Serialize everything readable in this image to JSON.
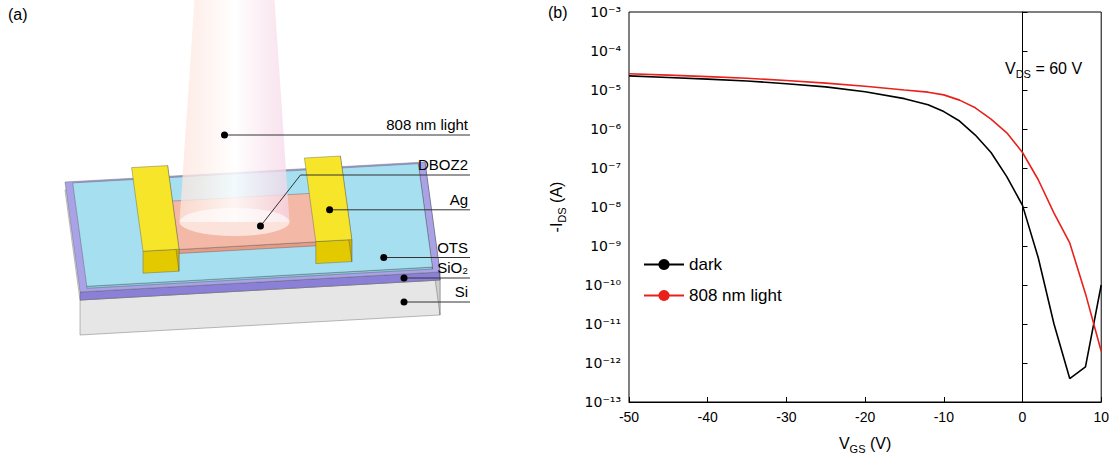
{
  "diagram": {
    "panel": "(a)",
    "labels": [
      "808 nm light",
      "DBOZ2",
      "Ag",
      "OTS",
      "SiO₂",
      "Si"
    ]
  },
  "chart_data": {
    "panel": "(b)",
    "type": "line",
    "xlabel": [
      "V",
      {
        "sub": "GS"
      },
      " (V)"
    ],
    "ylabel": [
      "-I",
      {
        "sub": "DS"
      },
      " (A)"
    ],
    "annotations": [
      [
        "V",
        {
          "sub": "DS"
        },
        " = 60 V"
      ]
    ],
    "x": [
      -50,
      -45,
      -40,
      -35,
      -30,
      -25,
      -20,
      -15,
      -12,
      -10,
      -8,
      -6,
      -4,
      -2,
      0,
      2,
      4,
      6,
      8,
      10
    ],
    "series": [
      {
        "name": "dark",
        "color": "#000000",
        "values": [
          2.3e-05,
          2.1e-05,
          1.9e-05,
          1.7e-05,
          1.45e-05,
          1.2e-05,
          9e-06,
          6e-06,
          4.2e-06,
          2.8e-06,
          1.6e-06,
          7e-07,
          2.5e-07,
          6e-08,
          1.1e-08,
          5e-10,
          1e-11,
          4e-13,
          8e-13,
          1e-10
        ]
      },
      {
        "name": "808 nm light",
        "color": "#e8211b",
        "values": [
          2.6e-05,
          2.4e-05,
          2.2e-05,
          2e-05,
          1.75e-05,
          1.5e-05,
          1.25e-05,
          1e-05,
          8.8e-06,
          7.5e-06,
          5.5e-06,
          3.5e-06,
          1.8e-06,
          8e-07,
          2.5e-07,
          5e-08,
          7e-09,
          1.2e-09,
          6e-11,
          2e-12
        ]
      }
    ],
    "xlim": [
      -50,
      10
    ],
    "xticks": [
      -50,
      -40,
      -30,
      -20,
      -10,
      0,
      10
    ],
    "ylim": [
      1e-13,
      0.001
    ],
    "yticks": [
      {
        "value": 1e-13,
        "label": "10⁻¹³"
      },
      {
        "value": 1e-12,
        "label": "10⁻¹²"
      },
      {
        "value": 1e-11,
        "label": "10⁻¹¹"
      },
      {
        "value": 1e-10,
        "label": "10⁻¹⁰"
      },
      {
        "value": 1e-09,
        "label": "10⁻⁹"
      },
      {
        "value": 1e-08,
        "label": "10⁻⁸"
      },
      {
        "value": 1e-07,
        "label": "10⁻⁷"
      },
      {
        "value": 1e-06,
        "label": "10⁻⁶"
      },
      {
        "value": 1e-05,
        "label": "10⁻⁵"
      },
      {
        "value": 0.0001,
        "label": "10⁻⁴"
      },
      {
        "value": 0.001,
        "label": "10⁻³"
      }
    ],
    "log": "y",
    "grid": false,
    "legend": "lower left"
  }
}
